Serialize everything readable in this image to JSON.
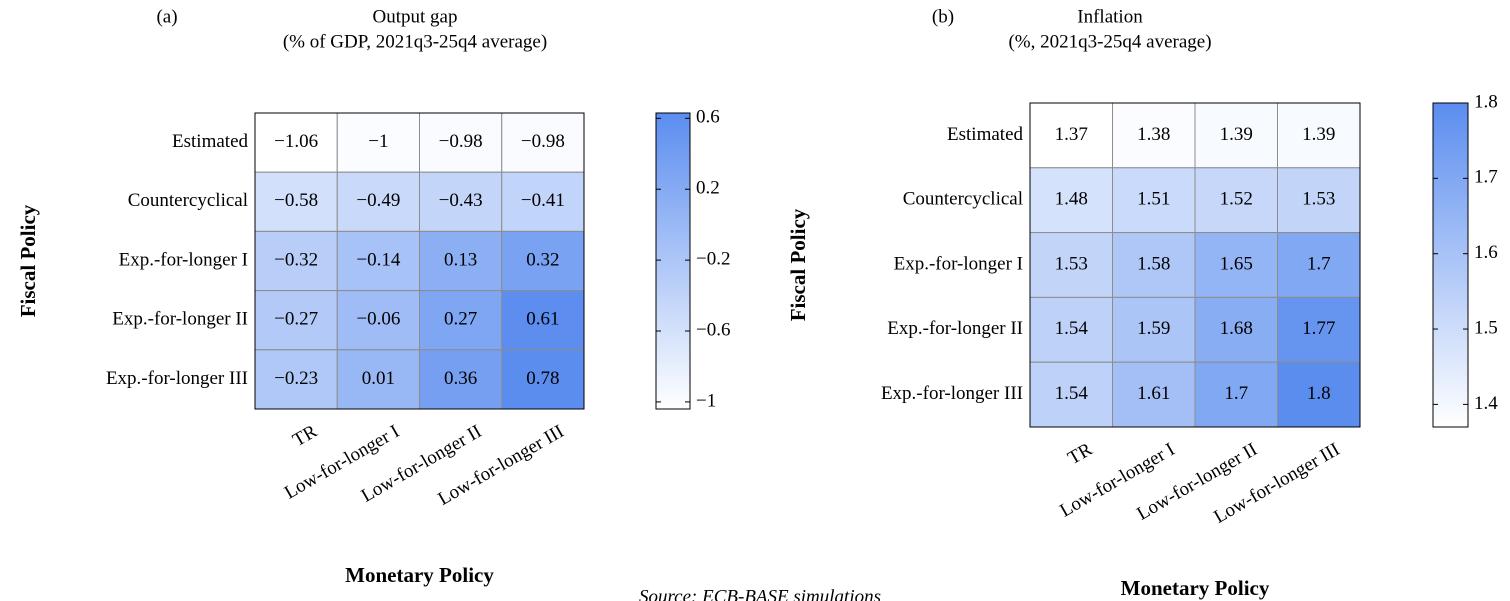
{
  "chart_data": [
    {
      "type": "heatmap",
      "label": "(a)",
      "title": "Output gap",
      "subtitle": "(% of GDP, 2021q3-25q4 average)",
      "x_label": "Monetary Policy",
      "y_label": "Fiscal Policy",
      "x_categories": [
        "TR",
        "Low-for-longer I",
        "Low-for-longer II",
        "Low-for-longer III"
      ],
      "y_categories": [
        "Estimated",
        "Countercyclical",
        "Exp.-for-longer I",
        "Exp.-for-longer II",
        "Exp.-for-longer III"
      ],
      "values": [
        [
          -1.06,
          -1,
          -0.98,
          -0.98
        ],
        [
          -0.58,
          -0.49,
          -0.43,
          -0.41
        ],
        [
          -0.32,
          -0.14,
          0.13,
          0.32
        ],
        [
          -0.27,
          -0.06,
          0.27,
          0.61
        ],
        [
          -0.23,
          0.01,
          0.36,
          0.78
        ]
      ],
      "value_labels": [
        [
          "−1.06",
          "−1",
          "−0.98",
          "−0.98"
        ],
        [
          "−0.58",
          "−0.49",
          "−0.43",
          "−0.41"
        ],
        [
          "−0.32",
          "−0.14",
          "0.13",
          "0.32"
        ],
        [
          "−0.27",
          "−0.06",
          "0.27",
          "0.61"
        ],
        [
          "−0.23",
          "0.01",
          "0.36",
          "0.78"
        ]
      ],
      "clim": [
        -1.04,
        0.63
      ],
      "cticks": [
        0.6,
        0.2,
        {
          "value": -0.2,
          "label": "−0.2"
        },
        {
          "value": -0.6,
          "label": "−0.6"
        },
        {
          "value": -1,
          "label": "−1"
        }
      ],
      "colors": [
        "#ffffff",
        "#5b8def"
      ]
    },
    {
      "type": "heatmap",
      "label": "(b)",
      "title": "Inflation",
      "subtitle": "(%, 2021q3-25q4 average)",
      "x_label": "Monetary Policy",
      "y_label": "Fiscal Policy",
      "x_categories": [
        "TR",
        "Low-for-longer I",
        "Low-for-longer II",
        "Low-for-longer III"
      ],
      "y_categories": [
        "Estimated",
        "Countercyclical",
        "Exp.-for-longer I",
        "Exp.-for-longer II",
        "Exp.-for-longer III"
      ],
      "values": [
        [
          1.37,
          1.38,
          1.39,
          1.39
        ],
        [
          1.48,
          1.51,
          1.52,
          1.53
        ],
        [
          1.53,
          1.58,
          1.65,
          1.7
        ],
        [
          1.54,
          1.59,
          1.68,
          1.77
        ],
        [
          1.54,
          1.61,
          1.7,
          1.8
        ]
      ],
      "clim": [
        1.37,
        1.8
      ],
      "cticks": [
        1.8,
        1.7,
        1.6,
        1.5,
        1.4
      ],
      "colors": [
        "#ffffff",
        "#5b8def"
      ]
    }
  ],
  "source": "Source: ECB-BASE simulations"
}
